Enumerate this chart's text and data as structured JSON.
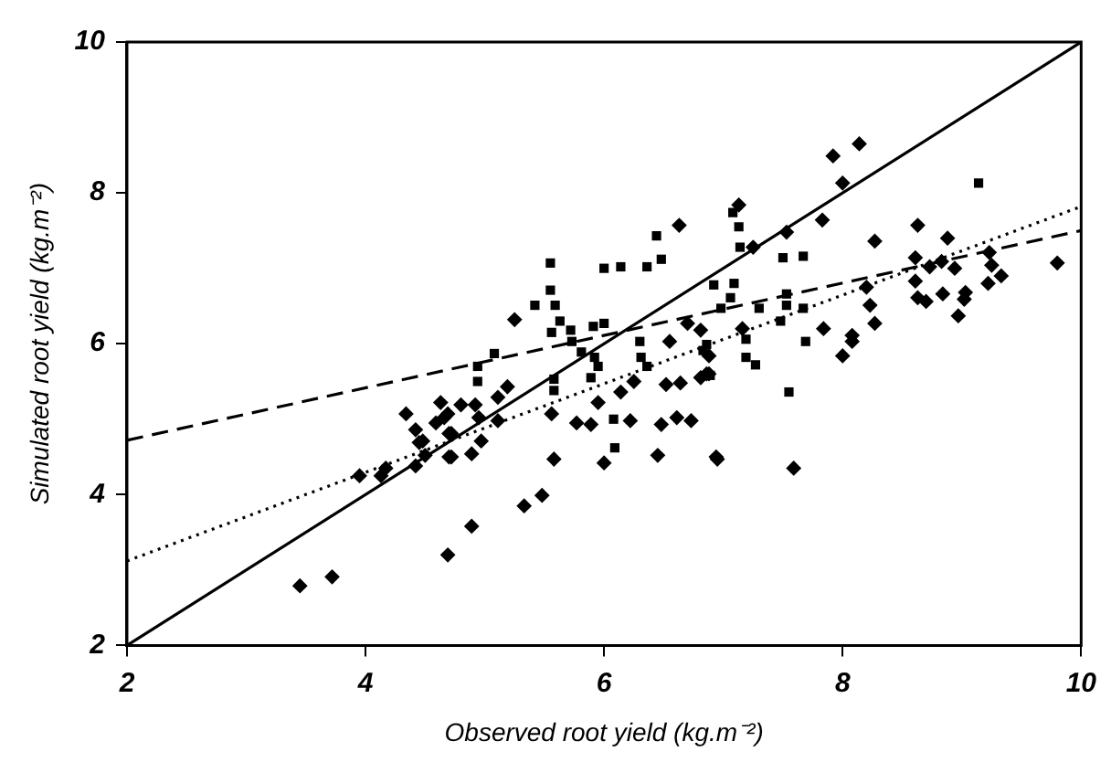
{
  "chart_data": {
    "type": "scatter",
    "xlabel": "Observed root yield (kg.m⁻²)",
    "ylabel": "Simulated root yield (kg.m⁻²)",
    "xlim": [
      2,
      10
    ],
    "ylim": [
      2,
      10
    ],
    "xticks": [
      2,
      4,
      6,
      8,
      10
    ],
    "yticks": [
      2,
      4,
      6,
      8,
      10
    ],
    "grid": false,
    "legend": false,
    "series": [
      {
        "type": "scatter",
        "marker": "diamond",
        "color": "#000000",
        "x": [
          3.45,
          3.72,
          4.69,
          3.95,
          4.13,
          4.17,
          4.34,
          4.42,
          4.45,
          4.42,
          4.5,
          4.63,
          4.59,
          4.7,
          4.7,
          4.69,
          4.89,
          5.33,
          5.48,
          5.58,
          6.0,
          6.45,
          6.94,
          5.25,
          6.63,
          4.72,
          4.89,
          4.48,
          4.66,
          4.8,
          4.92,
          4.95,
          4.72,
          5.11,
          5.19,
          5.11,
          4.97,
          5.56,
          5.77,
          5.89,
          5.95,
          6.14,
          6.25,
          6.22,
          6.48,
          6.61,
          6.73,
          6.52,
          6.64,
          6.55,
          6.7,
          6.81,
          6.86,
          7.25,
          7.53,
          7.83,
          8.27,
          8.63,
          8.88,
          8.61,
          8.73,
          8.83,
          8.94,
          9.23,
          9.25,
          9.33,
          9.22,
          9.8,
          8.61,
          8.63,
          8.7,
          8.84,
          9.03,
          9.02,
          8.97,
          8.2,
          8.23,
          8.27,
          7.84,
          8.08,
          8.08,
          8.0,
          7.16,
          6.88,
          6.88,
          6.81,
          6.95,
          7.59,
          7.92,
          8.0,
          8.14,
          7.13
        ],
        "values": [
          2.79,
          2.91,
          3.2,
          4.25,
          4.25,
          4.35,
          5.07,
          4.86,
          4.69,
          4.38,
          4.52,
          5.22,
          4.95,
          4.81,
          4.5,
          5.07,
          3.58,
          3.85,
          3.99,
          4.47,
          4.42,
          4.52,
          4.5,
          6.32,
          7.57,
          4.5,
          4.54,
          4.71,
          5.02,
          5.19,
          5.19,
          5.02,
          4.81,
          4.98,
          5.43,
          5.29,
          4.71,
          5.07,
          4.95,
          4.93,
          5.22,
          5.36,
          5.5,
          4.98,
          4.93,
          5.02,
          4.98,
          5.46,
          5.48,
          6.03,
          6.27,
          6.18,
          5.6,
          7.28,
          7.48,
          7.64,
          7.36,
          7.57,
          7.4,
          7.14,
          7.02,
          7.09,
          7.0,
          7.21,
          7.04,
          6.9,
          6.8,
          7.07,
          6.83,
          6.61,
          6.56,
          6.66,
          6.68,
          6.59,
          6.37,
          6.75,
          6.51,
          6.27,
          6.2,
          6.11,
          6.03,
          5.84,
          6.2,
          5.84,
          5.6,
          5.55,
          4.47,
          4.35,
          8.49,
          8.13,
          8.65,
          7.84
        ]
      },
      {
        "type": "scatter",
        "marker": "square",
        "color": "#000000",
        "x": [
          5.55,
          5.55,
          5.42,
          5.59,
          5.56,
          5.63,
          5.72,
          5.73,
          5.81,
          5.92,
          5.95,
          5.89,
          6.0,
          5.91,
          6.0,
          6.14,
          6.36,
          6.48,
          6.44,
          5.08,
          4.94,
          4.94,
          5.58,
          5.58,
          6.3,
          6.31,
          6.36,
          6.08,
          6.09,
          6.81,
          6.89,
          7.08,
          7.13,
          7.14,
          7.5,
          7.67,
          6.92,
          7.09,
          7.06,
          6.98,
          7.3,
          7.53,
          7.53,
          7.67,
          7.48,
          7.19,
          7.19,
          7.27,
          7.69,
          7.55,
          6.83,
          6.86,
          9.14
        ],
        "values": [
          7.07,
          6.71,
          6.51,
          6.51,
          6.15,
          6.3,
          6.18,
          6.03,
          5.89,
          5.82,
          5.7,
          5.55,
          6.27,
          6.23,
          7.0,
          7.02,
          7.02,
          7.12,
          7.43,
          5.87,
          5.7,
          5.5,
          5.53,
          5.38,
          6.03,
          5.82,
          5.7,
          5.0,
          4.62,
          null,
          5.58,
          7.74,
          7.55,
          7.28,
          7.14,
          7.16,
          6.78,
          6.8,
          6.61,
          6.47,
          6.47,
          6.66,
          6.51,
          6.47,
          6.3,
          6.06,
          5.82,
          5.72,
          6.03,
          5.36,
          5.91,
          5.99,
          8.13
        ]
      },
      {
        "type": "line",
        "marker": "none",
        "line_style": "solid",
        "color": "#000000",
        "x": [
          2,
          10
        ],
        "values": [
          2,
          10
        ]
      },
      {
        "type": "line",
        "marker": "none",
        "line_style": "dashed",
        "color": "#000000",
        "x": [
          2,
          10
        ],
        "values": [
          4.72,
          7.5
        ]
      },
      {
        "type": "line",
        "marker": "none",
        "line_style": "dotted",
        "color": "#000000",
        "x": [
          2,
          10
        ],
        "values": [
          3.12,
          7.82
        ]
      }
    ]
  }
}
